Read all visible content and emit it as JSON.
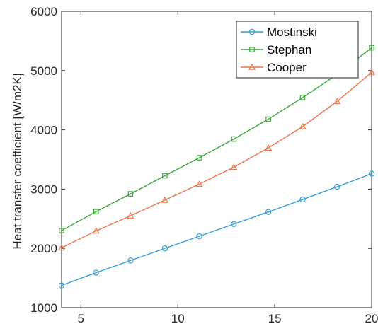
{
  "chart_data": {
    "type": "line",
    "title": "",
    "xlabel": "",
    "ylabel": "Heat transfer coefficient [W/m2K]",
    "xlim": [
      4,
      20
    ],
    "ylim": [
      1000,
      6000
    ],
    "x_ticks": [
      5,
      10,
      15,
      20
    ],
    "y_ticks": [
      1000,
      2000,
      3000,
      4000,
      5000,
      6000
    ],
    "grid": false,
    "legend_position": "top-right",
    "x": [
      4,
      5.78,
      7.56,
      9.33,
      11.11,
      12.89,
      14.67,
      16.44,
      18.22,
      20
    ],
    "series": [
      {
        "name": "Mostinski",
        "color": "#3a9fd6",
        "marker": "circle",
        "values": [
          1375,
          1590,
          1795,
          2000,
          2205,
          2410,
          2615,
          2825,
          3040,
          3260
        ]
      },
      {
        "name": "Stephan",
        "color": "#3ca53a",
        "marker": "square",
        "values": [
          2300,
          2620,
          2920,
          3225,
          3530,
          3845,
          4180,
          4545,
          4935,
          5385
        ]
      },
      {
        "name": "Cooper",
        "color": "#f0744c",
        "marker": "triangle",
        "values": [
          2010,
          2295,
          2550,
          2815,
          3085,
          3370,
          3695,
          4055,
          4480,
          4970
        ]
      }
    ]
  }
}
